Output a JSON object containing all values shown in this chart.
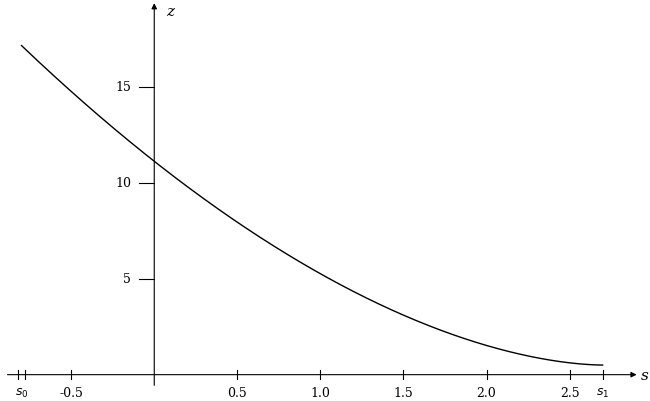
{
  "s0": -0.8,
  "s1": 2.7,
  "x_ticks": [
    -0.5,
    0.5,
    1.0,
    1.5,
    2.0,
    2.5
  ],
  "x_tick_labels": [
    "-0.5",
    "0.5",
    "1.0",
    "1.5",
    "2.0",
    "2.5"
  ],
  "y_ticks": [
    5,
    10,
    15
  ],
  "y_tick_labels": [
    "5",
    "10",
    "15"
  ],
  "xlabel": "s",
  "ylabel": "z",
  "line_color": "#000000",
  "bg_color": "#ffffff",
  "x_axis_min": -0.92,
  "x_axis_max": 2.92,
  "y_axis_min": -0.8,
  "y_axis_max": 19.5,
  "figwidth": 6.5,
  "figheight": 4.02,
  "dpi": 100
}
